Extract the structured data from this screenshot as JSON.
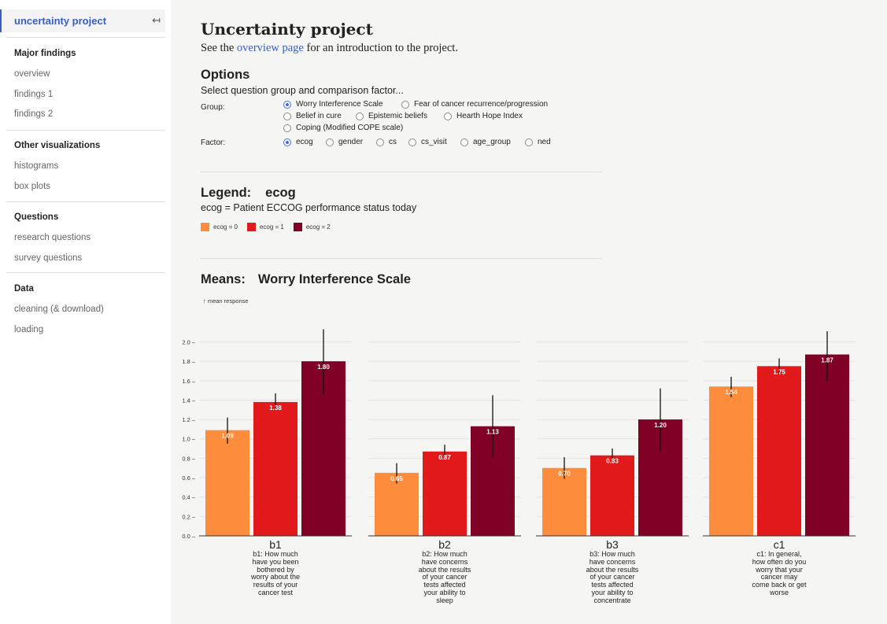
{
  "sidebar": {
    "current": "uncertainty project",
    "collapse_icon": "↤",
    "sections": [
      {
        "title": "Major findings",
        "items": [
          "overview",
          "findings 1",
          "findings 2"
        ]
      },
      {
        "title": "Other visualizations",
        "items": [
          "histograms",
          "box plots"
        ]
      },
      {
        "title": "Questions",
        "items": [
          "research questions",
          "survey questions"
        ]
      },
      {
        "title": "Data",
        "items": [
          "cleaning (& download)",
          "loading"
        ]
      }
    ]
  },
  "page": {
    "title": "Uncertainty project",
    "intro_pre": "See the ",
    "intro_link": "overview page",
    "intro_post": " for an introduction to the project."
  },
  "options": {
    "heading": "Options",
    "subheading": "Select question group and comparison factor...",
    "group_label": "Group:",
    "group_options": [
      "Worry Interference Scale",
      "Fear of cancer recurrence/progression",
      "Belief in cure",
      "Epistemic beliefs",
      "Hearth Hope Index",
      "Coping (Modified COPE scale)"
    ],
    "group_selected": "Worry Interference Scale",
    "factor_label": "Factor:",
    "factor_options": [
      "ecog",
      "gender",
      "cs",
      "cs_visit",
      "age_group",
      "ned"
    ],
    "factor_selected": "ecog"
  },
  "legend": {
    "heading": "Legend:",
    "factor": "ecog",
    "description": "ecog = Patient ECCOG performance status today",
    "entries": [
      {
        "label": "ecog = 0",
        "color": "#fd8d3c"
      },
      {
        "label": "ecog = 1",
        "color": "#e31a1c"
      },
      {
        "label": "ecog = 2",
        "color": "#800026"
      }
    ]
  },
  "means": {
    "heading": "Means:",
    "group": "Worry Interference Scale",
    "axis_label": "↑ mean response"
  },
  "chart_data": {
    "type": "bar",
    "ylim": [
      0,
      2.15
    ],
    "yticks": [
      "0.0",
      "0.2",
      "0.4",
      "0.6",
      "0.8",
      "1.0",
      "1.2",
      "1.4",
      "1.6",
      "1.8",
      "2.0"
    ],
    "grid": true,
    "series": [
      {
        "name": "ecog = 0",
        "color": "#fd8d3c"
      },
      {
        "name": "ecog = 1",
        "color": "#e31a1c"
      },
      {
        "name": "ecog = 2",
        "color": "#800026"
      }
    ],
    "panels": [
      {
        "id": "b1",
        "question": "b1: How much have you been bothered by worry about the results of your cancer test",
        "values": [
          1.09,
          1.38,
          1.8
        ],
        "labels": [
          "1.09",
          "1.38",
          "1.80"
        ],
        "error_low": [
          0.95,
          1.3,
          1.46
        ],
        "error_high": [
          1.22,
          1.47,
          2.13
        ]
      },
      {
        "id": "b2",
        "question": "b2: How much have concerns about the results of your cancer tests affected your ability to sleep",
        "values": [
          0.65,
          0.87,
          1.13
        ],
        "labels": [
          "0.65",
          "0.87",
          "1.13"
        ],
        "error_low": [
          0.54,
          0.8,
          0.81
        ],
        "error_high": [
          0.75,
          0.94,
          1.45
        ]
      },
      {
        "id": "b3",
        "question": "b3: How much have concerns about the results of your cancer tests affected your ability to concentrate",
        "values": [
          0.7,
          0.83,
          1.2
        ],
        "labels": [
          "0.70",
          "0.83",
          "1.20"
        ],
        "error_low": [
          0.59,
          0.76,
          0.87
        ],
        "error_high": [
          0.81,
          0.9,
          1.52
        ]
      },
      {
        "id": "c1",
        "question": "c1: In general, how often do you worry that your cancer may come back or get worse",
        "values": [
          1.54,
          1.75,
          1.87
        ],
        "labels": [
          "1.54",
          "1.75",
          "1.87"
        ],
        "error_low": [
          1.43,
          1.67,
          1.6
        ],
        "error_high": [
          1.64,
          1.83,
          2.11
        ]
      }
    ]
  }
}
